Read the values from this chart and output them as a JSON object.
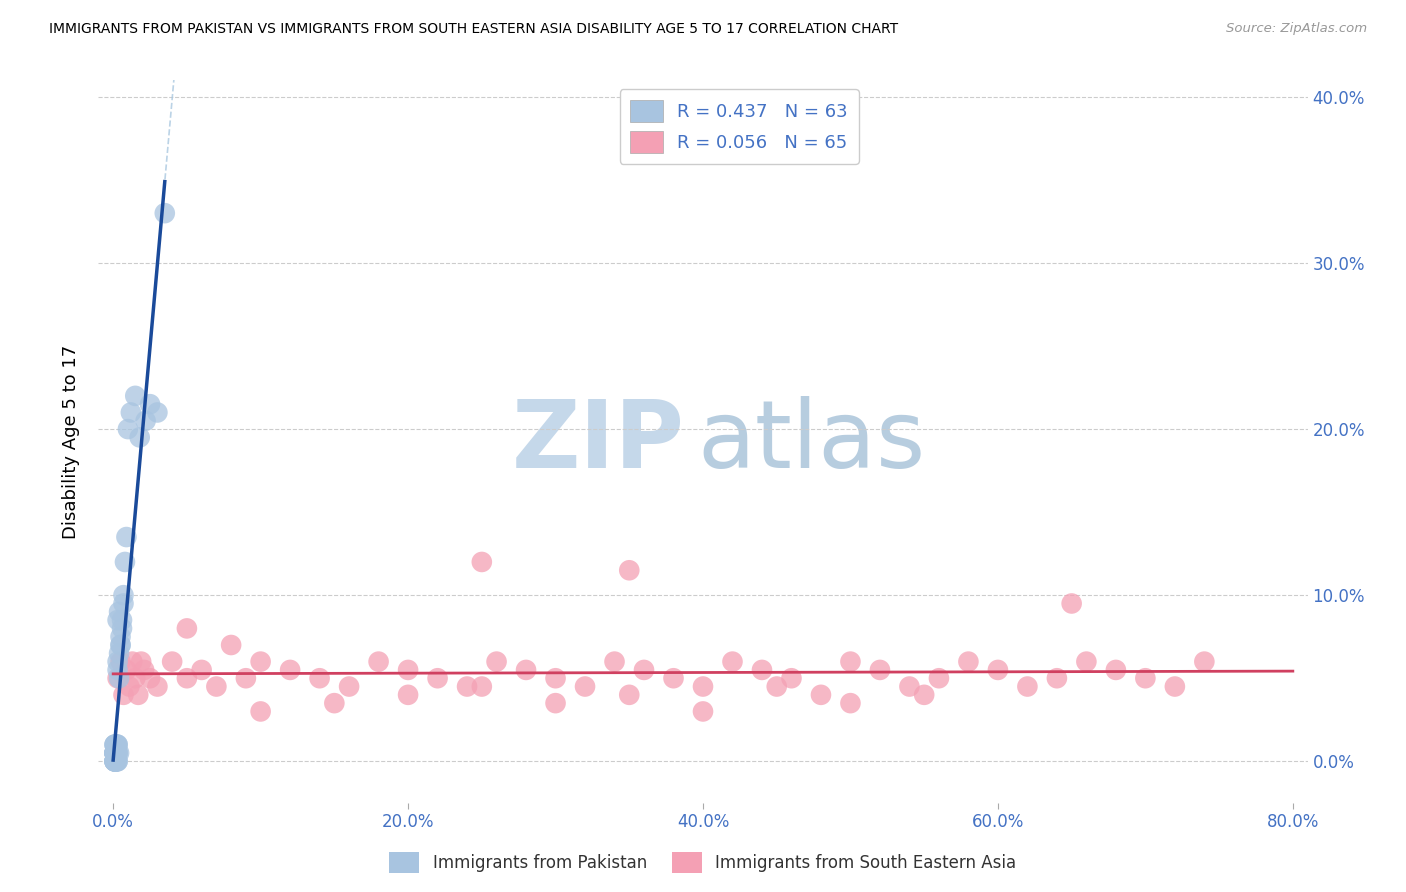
{
  "title": "IMMIGRANTS FROM PAKISTAN VS IMMIGRANTS FROM SOUTH EASTERN ASIA DISABILITY AGE 5 TO 17 CORRELATION CHART",
  "source": "Source: ZipAtlas.com",
  "ylabel_label": "Disability Age 5 to 17",
  "pakistan_R": 0.437,
  "pakistan_N": 63,
  "sea_R": 0.056,
  "sea_N": 65,
  "pakistan_color": "#a8c4e0",
  "pakistan_line_color": "#1a4a9a",
  "sea_color": "#f4a0b4",
  "sea_line_color": "#d04060",
  "watermark_zip_color": "#c5d8ea",
  "watermark_atlas_color": "#b0c8dc",
  "xlim": [
    0.0,
    0.8
  ],
  "ylim": [
    0.0,
    0.4
  ],
  "xtick_vals": [
    0.0,
    0.2,
    0.4,
    0.6,
    0.8
  ],
  "xtick_labels": [
    "0.0%",
    "20.0%",
    "40.0%",
    "60.0%",
    "80.0%"
  ],
  "ytick_vals": [
    0.0,
    0.1,
    0.2,
    0.3,
    0.4
  ],
  "ytick_labels": [
    "0.0%",
    "10.0%",
    "20.0%",
    "30.0%",
    "40.0%"
  ],
  "pak_x": [
    0.001,
    0.002,
    0.003,
    0.001,
    0.002,
    0.001,
    0.003,
    0.002,
    0.001,
    0.004,
    0.002,
    0.001,
    0.003,
    0.002,
    0.001,
    0.002,
    0.001,
    0.003,
    0.002,
    0.001,
    0.001,
    0.002,
    0.001,
    0.002,
    0.001,
    0.003,
    0.002,
    0.001,
    0.002,
    0.001,
    0.001,
    0.002,
    0.001,
    0.003,
    0.002,
    0.001,
    0.002,
    0.001,
    0.002,
    0.001,
    0.004,
    0.003,
    0.005,
    0.003,
    0.004,
    0.006,
    0.005,
    0.004,
    0.003,
    0.005,
    0.007,
    0.006,
    0.008,
    0.007,
    0.009,
    0.01,
    0.012,
    0.015,
    0.018,
    0.022,
    0.025,
    0.03,
    0.035
  ],
  "pak_y": [
    0.005,
    0.01,
    0.005,
    0.0,
    0.005,
    0.0,
    0.01,
    0.005,
    0.0,
    0.005,
    0.0,
    0.005,
    0.0,
    0.005,
    0.01,
    0.0,
    0.005,
    0.01,
    0.005,
    0.0,
    0.005,
    0.0,
    0.01,
    0.005,
    0.0,
    0.005,
    0.0,
    0.005,
    0.01,
    0.0,
    0.005,
    0.01,
    0.005,
    0.0,
    0.005,
    0.0,
    0.005,
    0.01,
    0.0,
    0.005,
    0.05,
    0.06,
    0.07,
    0.055,
    0.065,
    0.08,
    0.075,
    0.09,
    0.085,
    0.07,
    0.1,
    0.085,
    0.12,
    0.095,
    0.135,
    0.2,
    0.21,
    0.22,
    0.195,
    0.205,
    0.215,
    0.21,
    0.33
  ],
  "sea_x": [
    0.003,
    0.005,
    0.007,
    0.009,
    0.011,
    0.013,
    0.015,
    0.017,
    0.019,
    0.021,
    0.025,
    0.03,
    0.04,
    0.05,
    0.06,
    0.07,
    0.09,
    0.1,
    0.12,
    0.14,
    0.16,
    0.18,
    0.2,
    0.22,
    0.24,
    0.26,
    0.28,
    0.3,
    0.32,
    0.34,
    0.36,
    0.38,
    0.4,
    0.42,
    0.44,
    0.46,
    0.48,
    0.5,
    0.52,
    0.54,
    0.56,
    0.58,
    0.6,
    0.62,
    0.64,
    0.66,
    0.68,
    0.7,
    0.72,
    0.74,
    0.1,
    0.15,
    0.2,
    0.25,
    0.3,
    0.35,
    0.4,
    0.45,
    0.5,
    0.55,
    0.25,
    0.65,
    0.35,
    0.08,
    0.05
  ],
  "sea_y": [
    0.05,
    0.06,
    0.04,
    0.055,
    0.045,
    0.06,
    0.05,
    0.04,
    0.06,
    0.055,
    0.05,
    0.045,
    0.06,
    0.05,
    0.055,
    0.045,
    0.05,
    0.06,
    0.055,
    0.05,
    0.045,
    0.06,
    0.055,
    0.05,
    0.045,
    0.06,
    0.055,
    0.05,
    0.045,
    0.06,
    0.055,
    0.05,
    0.045,
    0.06,
    0.055,
    0.05,
    0.04,
    0.06,
    0.055,
    0.045,
    0.05,
    0.06,
    0.055,
    0.045,
    0.05,
    0.06,
    0.055,
    0.05,
    0.045,
    0.06,
    0.03,
    0.035,
    0.04,
    0.045,
    0.035,
    0.04,
    0.03,
    0.045,
    0.035,
    0.04,
    0.12,
    0.095,
    0.115,
    0.07,
    0.08
  ]
}
